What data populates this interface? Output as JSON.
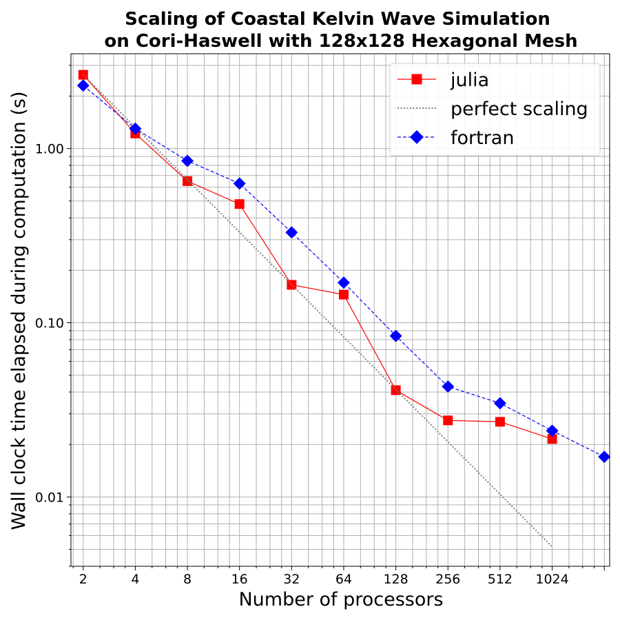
{
  "chart_data": {
    "type": "line",
    "title_line1": "Scaling of Coastal Kelvin Wave Simulation",
    "title_line2": "on Cori-Haswell with 128x128 Hexagonal Mesh",
    "xlabel": "Number of processors",
    "ylabel": "Wall clock time elapsed during computation (s)",
    "x_scale": "log2",
    "y_scale": "log10",
    "xlim": [
      1.7,
      2200
    ],
    "ylim": [
      0.004,
      3.5
    ],
    "x_ticks": [
      2,
      4,
      8,
      16,
      32,
      64,
      128,
      256,
      512,
      1024,
      2048
    ],
    "x_tick_labels": [
      "2",
      "4",
      "8",
      "16",
      "32",
      "64",
      "128",
      "256",
      "512",
      "1024",
      ""
    ],
    "y_ticks": [
      0.01,
      0.1,
      1.0
    ],
    "y_tick_labels": [
      "0.01",
      "0.10",
      "1.00"
    ],
    "grid": true,
    "legend_position": "top-right",
    "series": [
      {
        "name": "julia",
        "color": "#ff0000",
        "line_style": "solid",
        "marker": "square",
        "x": [
          2,
          4,
          8,
          16,
          32,
          64,
          128,
          256,
          512,
          1024
        ],
        "y": [
          2.65,
          1.22,
          0.65,
          0.48,
          0.165,
          0.145,
          0.041,
          0.0275,
          0.027,
          0.0215
        ]
      },
      {
        "name": "perfect scaling",
        "color": "#808080",
        "line_style": "dotted",
        "marker": "none",
        "x": [
          2,
          4,
          8,
          16,
          32,
          64,
          128,
          256,
          512,
          1024
        ],
        "y": [
          2.65,
          1.325,
          0.6625,
          0.33125,
          0.165625,
          0.0828125,
          0.04140625,
          0.020703125,
          0.0103515625,
          0.00517578125
        ]
      },
      {
        "name": "fortran",
        "color": "#0000ff",
        "line_style": "dashed",
        "marker": "diamond",
        "x": [
          2,
          4,
          8,
          16,
          32,
          64,
          128,
          256,
          512,
          1024,
          2048
        ],
        "y": [
          2.3,
          1.3,
          0.85,
          0.63,
          0.33,
          0.17,
          0.084,
          0.043,
          0.0345,
          0.024,
          0.017
        ]
      }
    ]
  }
}
